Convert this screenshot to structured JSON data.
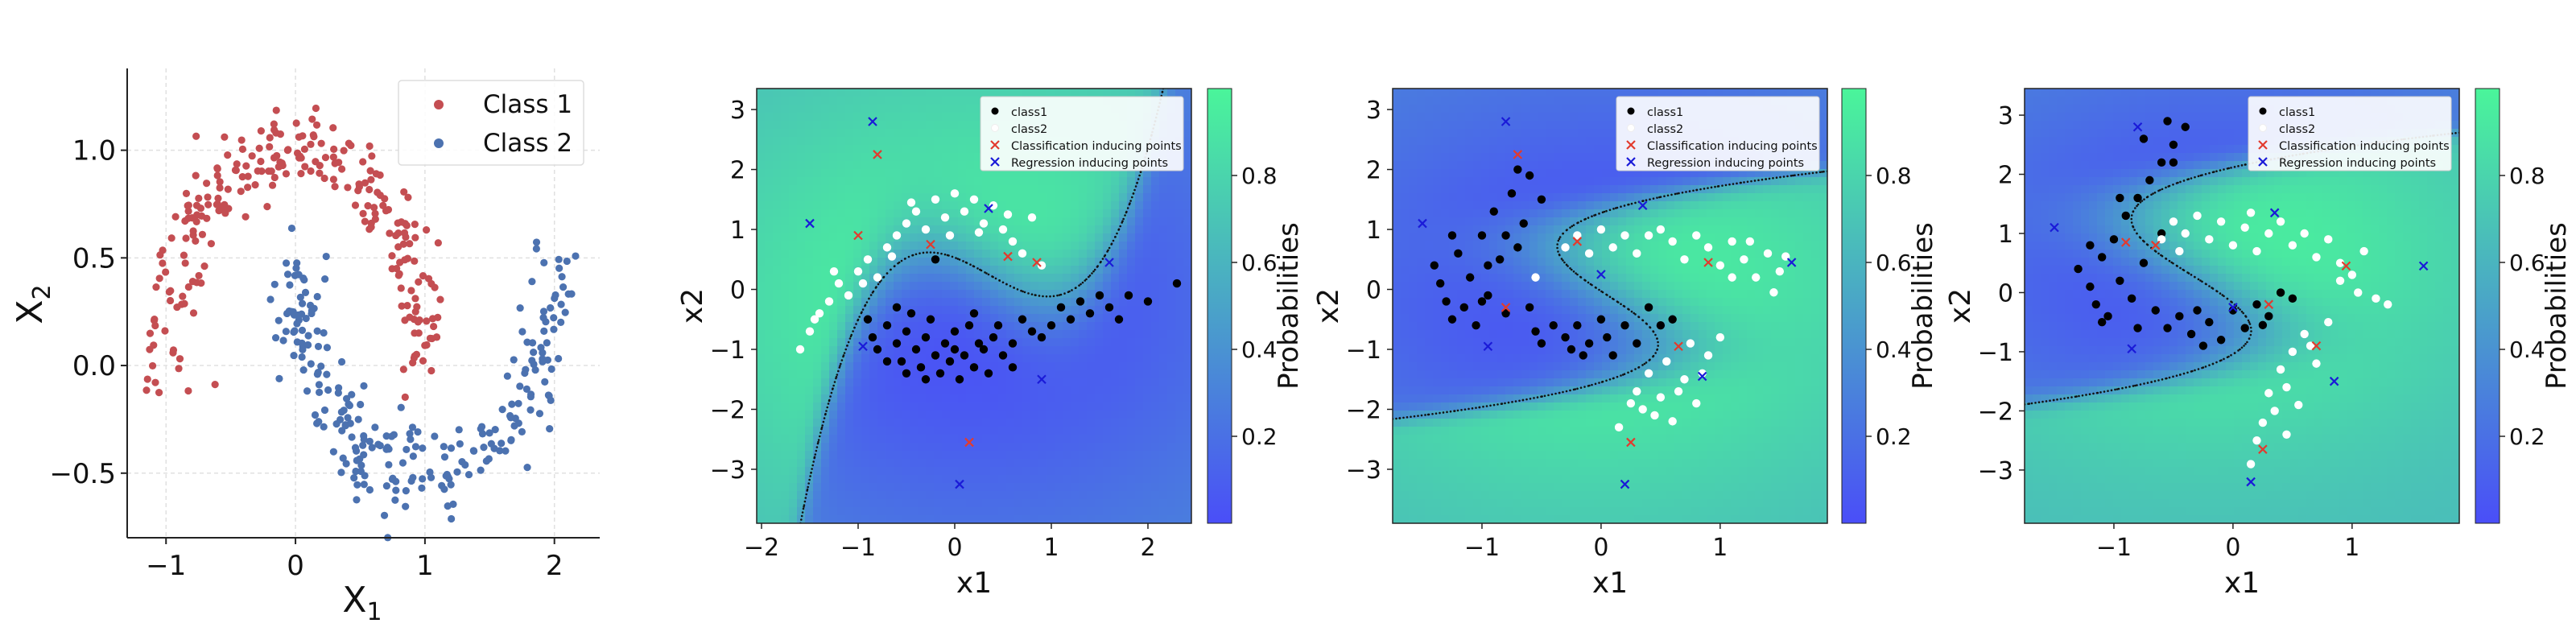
{
  "colors": {
    "class1_red": "#c44e52",
    "class2_blue": "#4c72b0",
    "map_low": "#4a4ef8",
    "map_high": "#4af59a",
    "classification_inducing": "#e23b2e",
    "regression_inducing": "#1a1ad8",
    "boundary": "#111111"
  },
  "chart_data": [
    {
      "type": "scatter",
      "title": "",
      "xlabel": "X",
      "xlabel_sub": "1",
      "ylabel": "X",
      "ylabel_sub": "2",
      "xlim": [
        -1.3,
        2.35
      ],
      "ylim": [
        -0.8,
        1.38
      ],
      "xticks": [
        -1,
        0,
        1,
        2
      ],
      "yticks": [
        -0.5,
        0.0,
        0.5,
        1.0
      ],
      "xtick_labels": [
        "−1",
        "0",
        "1",
        "2"
      ],
      "ytick_labels": [
        "−0.5",
        "0.0",
        "0.5",
        "1.0"
      ],
      "grid": true,
      "legend_position": "top-right",
      "series": [
        {
          "name": "Class 1",
          "color": "#c44e52",
          "shape": "upper moon: x = cos(t), y = sin(t), t in [0, pi], 250 points, noise 0.1"
        },
        {
          "name": "Class 2",
          "color": "#4c72b0",
          "shape": "lower moon: x = 1 - cos(t), y = 0.5 - sin(t), t in [0, pi], 250 points, noise 0.1"
        }
      ]
    },
    {
      "type": "heatmap",
      "xlabel": "x1",
      "ylabel": "x2",
      "xlim": [
        -2.05,
        2.45
      ],
      "ylim": [
        -3.9,
        3.35
      ],
      "xticks": [
        -2,
        -1,
        0,
        1,
        2
      ],
      "yticks": [
        -3,
        -2,
        -1,
        0,
        1,
        2,
        3
      ],
      "xtick_labels": [
        "−2",
        "−1",
        "0",
        "1",
        "2"
      ],
      "ytick_labels": [
        "−3",
        "−2",
        "−1",
        "0",
        "1",
        "2",
        "3"
      ],
      "colorbar_label": "Probabilities",
      "colorbar_ticks": [
        "0.2",
        "0.4",
        "0.6",
        "0.8"
      ],
      "colorbar_tick_values": [
        0.2,
        0.4,
        0.6,
        0.8
      ],
      "legend": [
        "class1",
        "class2",
        "Classification inducing points",
        "Regression inducing points"
      ],
      "legend_position": "top-right",
      "boundary_shape": "cubic-like curve passing low through bottom-left, rising steeply on right",
      "class1_points": [
        [
          -0.9,
          -0.5
        ],
        [
          -0.8,
          -1.0
        ],
        [
          -0.7,
          -0.6
        ],
        [
          -0.6,
          -0.9
        ],
        [
          -0.55,
          -1.2
        ],
        [
          -0.5,
          -0.7
        ],
        [
          -0.45,
          -0.4
        ],
        [
          -0.4,
          -1.0
        ],
        [
          -0.35,
          -1.3
        ],
        [
          -0.3,
          -0.8
        ],
        [
          -0.25,
          -0.5
        ],
        [
          -0.2,
          -1.1
        ],
        [
          -0.15,
          -1.4
        ],
        [
          -0.1,
          -0.9
        ],
        [
          -0.05,
          -1.2
        ],
        [
          0.0,
          -0.7
        ],
        [
          0.05,
          -1.5
        ],
        [
          0.1,
          -1.1
        ],
        [
          0.15,
          -0.6
        ],
        [
          0.2,
          -1.3
        ],
        [
          0.25,
          -0.9
        ],
        [
          0.3,
          -1.0
        ],
        [
          0.35,
          -1.4
        ],
        [
          0.4,
          -0.8
        ],
        [
          0.5,
          -1.1
        ],
        [
          0.6,
          -0.9
        ],
        [
          0.7,
          -0.5
        ],
        [
          0.8,
          -0.7
        ],
        [
          0.9,
          -0.8
        ],
        [
          1.0,
          -0.6
        ],
        [
          1.1,
          -0.3
        ],
        [
          1.2,
          -0.5
        ],
        [
          1.3,
          -0.2
        ],
        [
          1.4,
          -0.4
        ],
        [
          1.5,
          -0.1
        ],
        [
          1.6,
          -0.3
        ],
        [
          1.7,
          -0.5
        ],
        [
          1.8,
          -0.1
        ],
        [
          2.0,
          -0.2
        ],
        [
          2.3,
          0.1
        ],
        [
          -0.6,
          -0.3
        ],
        [
          -0.7,
          -1.2
        ],
        [
          -0.3,
          -1.5
        ],
        [
          0.0,
          -1.0
        ],
        [
          0.2,
          -0.4
        ],
        [
          -0.2,
          0.5
        ],
        [
          0.6,
          -1.3
        ],
        [
          0.45,
          -0.6
        ],
        [
          -0.85,
          -0.8
        ],
        [
          -0.5,
          -1.4
        ]
      ],
      "class2_points": [
        [
          -1.6,
          -1.0
        ],
        [
          -1.5,
          -0.7
        ],
        [
          -1.4,
          -0.4
        ],
        [
          -1.3,
          -0.2
        ],
        [
          -1.2,
          0.1
        ],
        [
          -1.1,
          -0.1
        ],
        [
          -1.0,
          0.3
        ],
        [
          -0.9,
          0.5
        ],
        [
          -0.8,
          0.2
        ],
        [
          -0.7,
          0.7
        ],
        [
          -0.6,
          0.9
        ],
        [
          -0.5,
          1.1
        ],
        [
          -0.4,
          1.3
        ],
        [
          -0.3,
          1.0
        ],
        [
          -0.2,
          1.5
        ],
        [
          -0.1,
          1.2
        ],
        [
          0.0,
          1.6
        ],
        [
          0.1,
          1.3
        ],
        [
          0.2,
          1.5
        ],
        [
          0.3,
          1.1
        ],
        [
          0.4,
          1.4
        ],
        [
          0.5,
          1.0
        ],
        [
          0.6,
          0.8
        ],
        [
          0.7,
          0.6
        ],
        [
          0.8,
          1.2
        ],
        [
          0.9,
          0.4
        ],
        [
          -0.45,
          1.45
        ],
        [
          -0.05,
          0.9
        ],
        [
          0.25,
          0.95
        ],
        [
          0.55,
          1.25
        ],
        [
          -1.25,
          0.3
        ],
        [
          -1.45,
          -0.5
        ],
        [
          -0.95,
          0.1
        ],
        [
          -0.65,
          0.55
        ]
      ],
      "classification_inducing": [
        [
          -0.8,
          2.25
        ],
        [
          -1.0,
          0.9
        ],
        [
          -0.25,
          0.75
        ],
        [
          0.15,
          -2.55
        ],
        [
          0.85,
          0.45
        ],
        [
          0.55,
          0.55
        ]
      ],
      "regression_inducing": [
        [
          -0.85,
          2.8
        ],
        [
          -1.5,
          1.1
        ],
        [
          -0.95,
          -0.95
        ],
        [
          0.35,
          1.35
        ],
        [
          0.05,
          -3.25
        ],
        [
          0.9,
          -1.5
        ],
        [
          1.6,
          0.45
        ]
      ]
    },
    {
      "type": "heatmap",
      "xlabel": "x1",
      "ylabel": "x2",
      "xlim": [
        -1.75,
        1.9
      ],
      "ylim": [
        -3.9,
        3.35
      ],
      "xticks": [
        -1,
        0,
        1
      ],
      "yticks": [
        -3,
        -2,
        -1,
        0,
        1,
        2,
        3
      ],
      "xtick_labels": [
        "−1",
        "0",
        "1"
      ],
      "ytick_labels": [
        "−3",
        "−2",
        "−1",
        "0",
        "1",
        "2",
        "3"
      ],
      "colorbar_label": "Probabilities",
      "colorbar_ticks": [
        "0.2",
        "0.4",
        "0.6",
        "0.8"
      ],
      "colorbar_tick_values": [
        0.2,
        0.4,
        0.6,
        0.8
      ],
      "legend": [
        "class1",
        "class2",
        "Classification inducing points",
        "Regression inducing points"
      ],
      "legend_position": "top-right",
      "boundary_shape": "S-shaped curve from bottom-left to top-right",
      "class1_points": [
        [
          -1.4,
          0.4
        ],
        [
          -1.35,
          0.1
        ],
        [
          -1.3,
          -0.2
        ],
        [
          -1.25,
          -0.5
        ],
        [
          -1.2,
          0.6
        ],
        [
          -1.15,
          -0.3
        ],
        [
          -1.1,
          0.2
        ],
        [
          -1.05,
          -0.6
        ],
        [
          -1.0,
          0.9
        ],
        [
          -0.95,
          -0.1
        ],
        [
          -0.9,
          1.3
        ],
        [
          -0.85,
          0.5
        ],
        [
          -0.8,
          -0.4
        ],
        [
          -0.75,
          1.6
        ],
        [
          -0.7,
          0.7
        ],
        [
          -0.7,
          2.0
        ],
        [
          -0.65,
          1.1
        ],
        [
          -0.6,
          -0.3
        ],
        [
          -0.55,
          -0.7
        ],
        [
          -0.5,
          -0.9
        ],
        [
          -0.4,
          -0.6
        ],
        [
          -0.3,
          -0.8
        ],
        [
          -0.25,
          -1.0
        ],
        [
          -0.2,
          -0.6
        ],
        [
          -0.1,
          -0.9
        ],
        [
          0.0,
          -0.5
        ],
        [
          0.05,
          -0.8
        ],
        [
          0.1,
          -1.1
        ],
        [
          0.2,
          -0.6
        ],
        [
          0.3,
          -0.9
        ],
        [
          0.4,
          -0.3
        ],
        [
          0.5,
          -0.6
        ],
        [
          0.6,
          -0.5
        ],
        [
          -0.6,
          1.9
        ],
        [
          -0.8,
          0.9
        ],
        [
          -1.0,
          -0.2
        ],
        [
          -0.95,
          0.4
        ],
        [
          -0.5,
          1.5
        ],
        [
          -1.25,
          0.9
        ],
        [
          -0.15,
          -1.1
        ]
      ],
      "class2_points": [
        [
          -0.55,
          0.2
        ],
        [
          -0.3,
          0.7
        ],
        [
          -0.2,
          0.9
        ],
        [
          -0.1,
          0.6
        ],
        [
          0.0,
          1.0
        ],
        [
          0.1,
          0.7
        ],
        [
          0.2,
          0.9
        ],
        [
          0.3,
          0.6
        ],
        [
          0.4,
          0.9
        ],
        [
          0.5,
          1.0
        ],
        [
          0.6,
          0.8
        ],
        [
          0.7,
          0.5
        ],
        [
          0.8,
          0.9
        ],
        [
          0.9,
          0.7
        ],
        [
          1.0,
          0.4
        ],
        [
          1.1,
          0.8
        ],
        [
          1.2,
          0.5
        ],
        [
          1.3,
          0.2
        ],
        [
          1.4,
          0.6
        ],
        [
          1.5,
          0.3
        ],
        [
          0.3,
          -1.7
        ],
        [
          0.35,
          -2.0
        ],
        [
          0.4,
          -1.4
        ],
        [
          0.5,
          -1.8
        ],
        [
          0.55,
          -1.2
        ],
        [
          0.6,
          -2.2
        ],
        [
          0.7,
          -1.5
        ],
        [
          0.75,
          -0.9
        ],
        [
          0.8,
          -1.9
        ],
        [
          0.9,
          -1.1
        ],
        [
          1.0,
          -0.8
        ],
        [
          0.15,
          -2.3
        ],
        [
          0.25,
          -1.9
        ],
        [
          0.45,
          -2.1
        ],
        [
          0.65,
          -1.7
        ],
        [
          0.85,
          -1.4
        ],
        [
          1.1,
          0.2
        ],
        [
          1.25,
          0.8
        ],
        [
          1.45,
          -0.05
        ],
        [
          1.55,
          0.55
        ]
      ],
      "classification_inducing": [
        [
          -0.7,
          2.25
        ],
        [
          -0.8,
          -0.3
        ],
        [
          -0.2,
          0.8
        ],
        [
          0.25,
          -2.55
        ],
        [
          0.65,
          -0.95
        ],
        [
          0.9,
          0.45
        ]
      ],
      "regression_inducing": [
        [
          -1.5,
          1.1
        ],
        [
          -0.8,
          2.8
        ],
        [
          -0.95,
          -0.95
        ],
        [
          0.0,
          0.25
        ],
        [
          0.35,
          1.4
        ],
        [
          0.2,
          -3.25
        ],
        [
          0.85,
          -1.45
        ],
        [
          1.6,
          0.45
        ]
      ]
    },
    {
      "type": "heatmap",
      "xlabel": "x1",
      "ylabel": "x2",
      "xlim": [
        -1.75,
        1.9
      ],
      "ylim": [
        -3.9,
        3.45
      ],
      "xticks": [
        -1,
        0,
        1
      ],
      "yticks": [
        -3,
        -2,
        -1,
        0,
        1,
        2,
        3
      ],
      "xtick_labels": [
        "−1",
        "0",
        "1"
      ],
      "ytick_labels": [
        "−3",
        "−2",
        "−1",
        "0",
        "1",
        "2",
        "3"
      ],
      "colorbar_label": "Probabilities",
      "colorbar_ticks": [
        "0.2",
        "0.4",
        "0.6",
        "0.8"
      ],
      "colorbar_tick_values": [
        0.2,
        0.4,
        0.6,
        0.8
      ],
      "legend": [
        "class1",
        "class2",
        "Classification inducing points",
        "Regression inducing points"
      ],
      "legend_position": "top-right",
      "boundary_shape": "S-shaped curve, smaller blue region on the left",
      "class1_points": [
        [
          -1.3,
          0.4
        ],
        [
          -1.2,
          0.1
        ],
        [
          -1.15,
          -0.2
        ],
        [
          -1.1,
          0.6
        ],
        [
          -1.05,
          -0.4
        ],
        [
          -1.0,
          0.9
        ],
        [
          -0.95,
          0.2
        ],
        [
          -0.9,
          1.3
        ],
        [
          -0.85,
          -0.1
        ],
        [
          -0.8,
          1.6
        ],
        [
          -0.75,
          0.5
        ],
        [
          -0.7,
          1.9
        ],
        [
          -0.65,
          -0.3
        ],
        [
          -0.6,
          2.2
        ],
        [
          -0.55,
          -0.6
        ],
        [
          -0.5,
          2.5
        ],
        [
          -0.45,
          -0.4
        ],
        [
          -0.4,
          2.8
        ],
        [
          -0.35,
          -0.7
        ],
        [
          -0.3,
          -0.3
        ],
        [
          -0.2,
          -0.5
        ],
        [
          -0.1,
          -0.8
        ],
        [
          0.0,
          -0.3
        ],
        [
          0.1,
          -0.6
        ],
        [
          0.2,
          -0.2
        ],
        [
          0.3,
          -0.4
        ],
        [
          0.4,
          0.0
        ],
        [
          0.5,
          -0.1
        ],
        [
          -0.55,
          2.9
        ],
        [
          -0.75,
          2.6
        ],
        [
          -0.95,
          1.6
        ],
        [
          -1.2,
          0.8
        ],
        [
          -1.1,
          -0.5
        ],
        [
          -0.8,
          -0.6
        ],
        [
          -0.6,
          1.0
        ],
        [
          -0.5,
          2.2
        ],
        [
          -0.25,
          -0.9
        ],
        [
          0.25,
          -0.55
        ]
      ],
      "class2_points": [
        [
          -0.6,
          0.9
        ],
        [
          -0.5,
          1.2
        ],
        [
          -0.4,
          1.0
        ],
        [
          -0.3,
          1.3
        ],
        [
          -0.2,
          0.9
        ],
        [
          -0.1,
          1.2
        ],
        [
          0.0,
          0.8
        ],
        [
          0.1,
          1.1
        ],
        [
          0.2,
          0.7
        ],
        [
          0.3,
          1.0
        ],
        [
          0.4,
          1.2
        ],
        [
          0.5,
          0.8
        ],
        [
          0.6,
          1.0
        ],
        [
          0.7,
          0.6
        ],
        [
          0.8,
          0.9
        ],
        [
          0.9,
          0.5
        ],
        [
          1.0,
          0.3
        ],
        [
          1.1,
          0.7
        ],
        [
          1.2,
          -0.1
        ],
        [
          1.3,
          -0.2
        ],
        [
          0.2,
          -2.5
        ],
        [
          0.25,
          -2.2
        ],
        [
          0.3,
          -1.7
        ],
        [
          0.35,
          -2.0
        ],
        [
          0.4,
          -1.3
        ],
        [
          0.45,
          -1.6
        ],
        [
          0.5,
          -1.0
        ],
        [
          0.55,
          -1.9
        ],
        [
          0.6,
          -0.7
        ],
        [
          0.7,
          -1.2
        ],
        [
          0.8,
          -0.5
        ],
        [
          0.9,
          0.2
        ],
        [
          0.15,
          -2.9
        ],
        [
          0.45,
          -2.4
        ],
        [
          0.65,
          -0.9
        ],
        [
          1.05,
          0.0
        ],
        [
          -0.45,
          0.7
        ],
        [
          0.15,
          1.35
        ]
      ],
      "classification_inducing": [
        [
          -0.9,
          0.85
        ],
        [
          -0.65,
          0.8
        ],
        [
          0.25,
          -2.65
        ],
        [
          0.3,
          -0.2
        ],
        [
          0.7,
          -0.9
        ],
        [
          0.95,
          0.45
        ]
      ],
      "regression_inducing": [
        [
          -1.5,
          1.1
        ],
        [
          -0.8,
          2.8
        ],
        [
          -0.85,
          -0.95
        ],
        [
          0.0,
          -0.25
        ],
        [
          0.35,
          1.35
        ],
        [
          0.15,
          -3.2
        ],
        [
          0.85,
          -1.5
        ],
        [
          1.6,
          0.45
        ]
      ]
    }
  ]
}
